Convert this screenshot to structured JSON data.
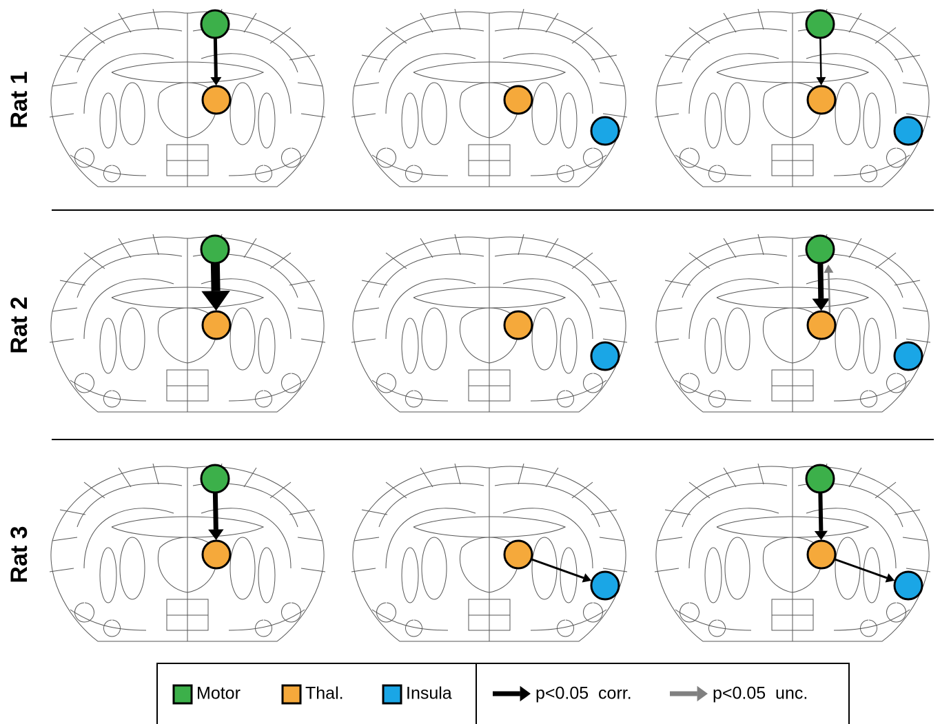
{
  "rows": [
    {
      "label": "Rat 1"
    },
    {
      "label": "Rat 2"
    },
    {
      "label": "Rat 3"
    }
  ],
  "legend": {
    "regions": [
      {
        "label": "Motor",
        "color": "#3cb04a"
      },
      {
        "label": "Thal.",
        "color": "#f5a93b"
      },
      {
        "label": "Insula",
        "color": "#1aa6e6"
      }
    ],
    "arrows": [
      {
        "label": "p<0.05  corr.",
        "color": "#000000"
      },
      {
        "label": "p<0.05  unc.",
        "color": "#808080"
      }
    ]
  }
}
